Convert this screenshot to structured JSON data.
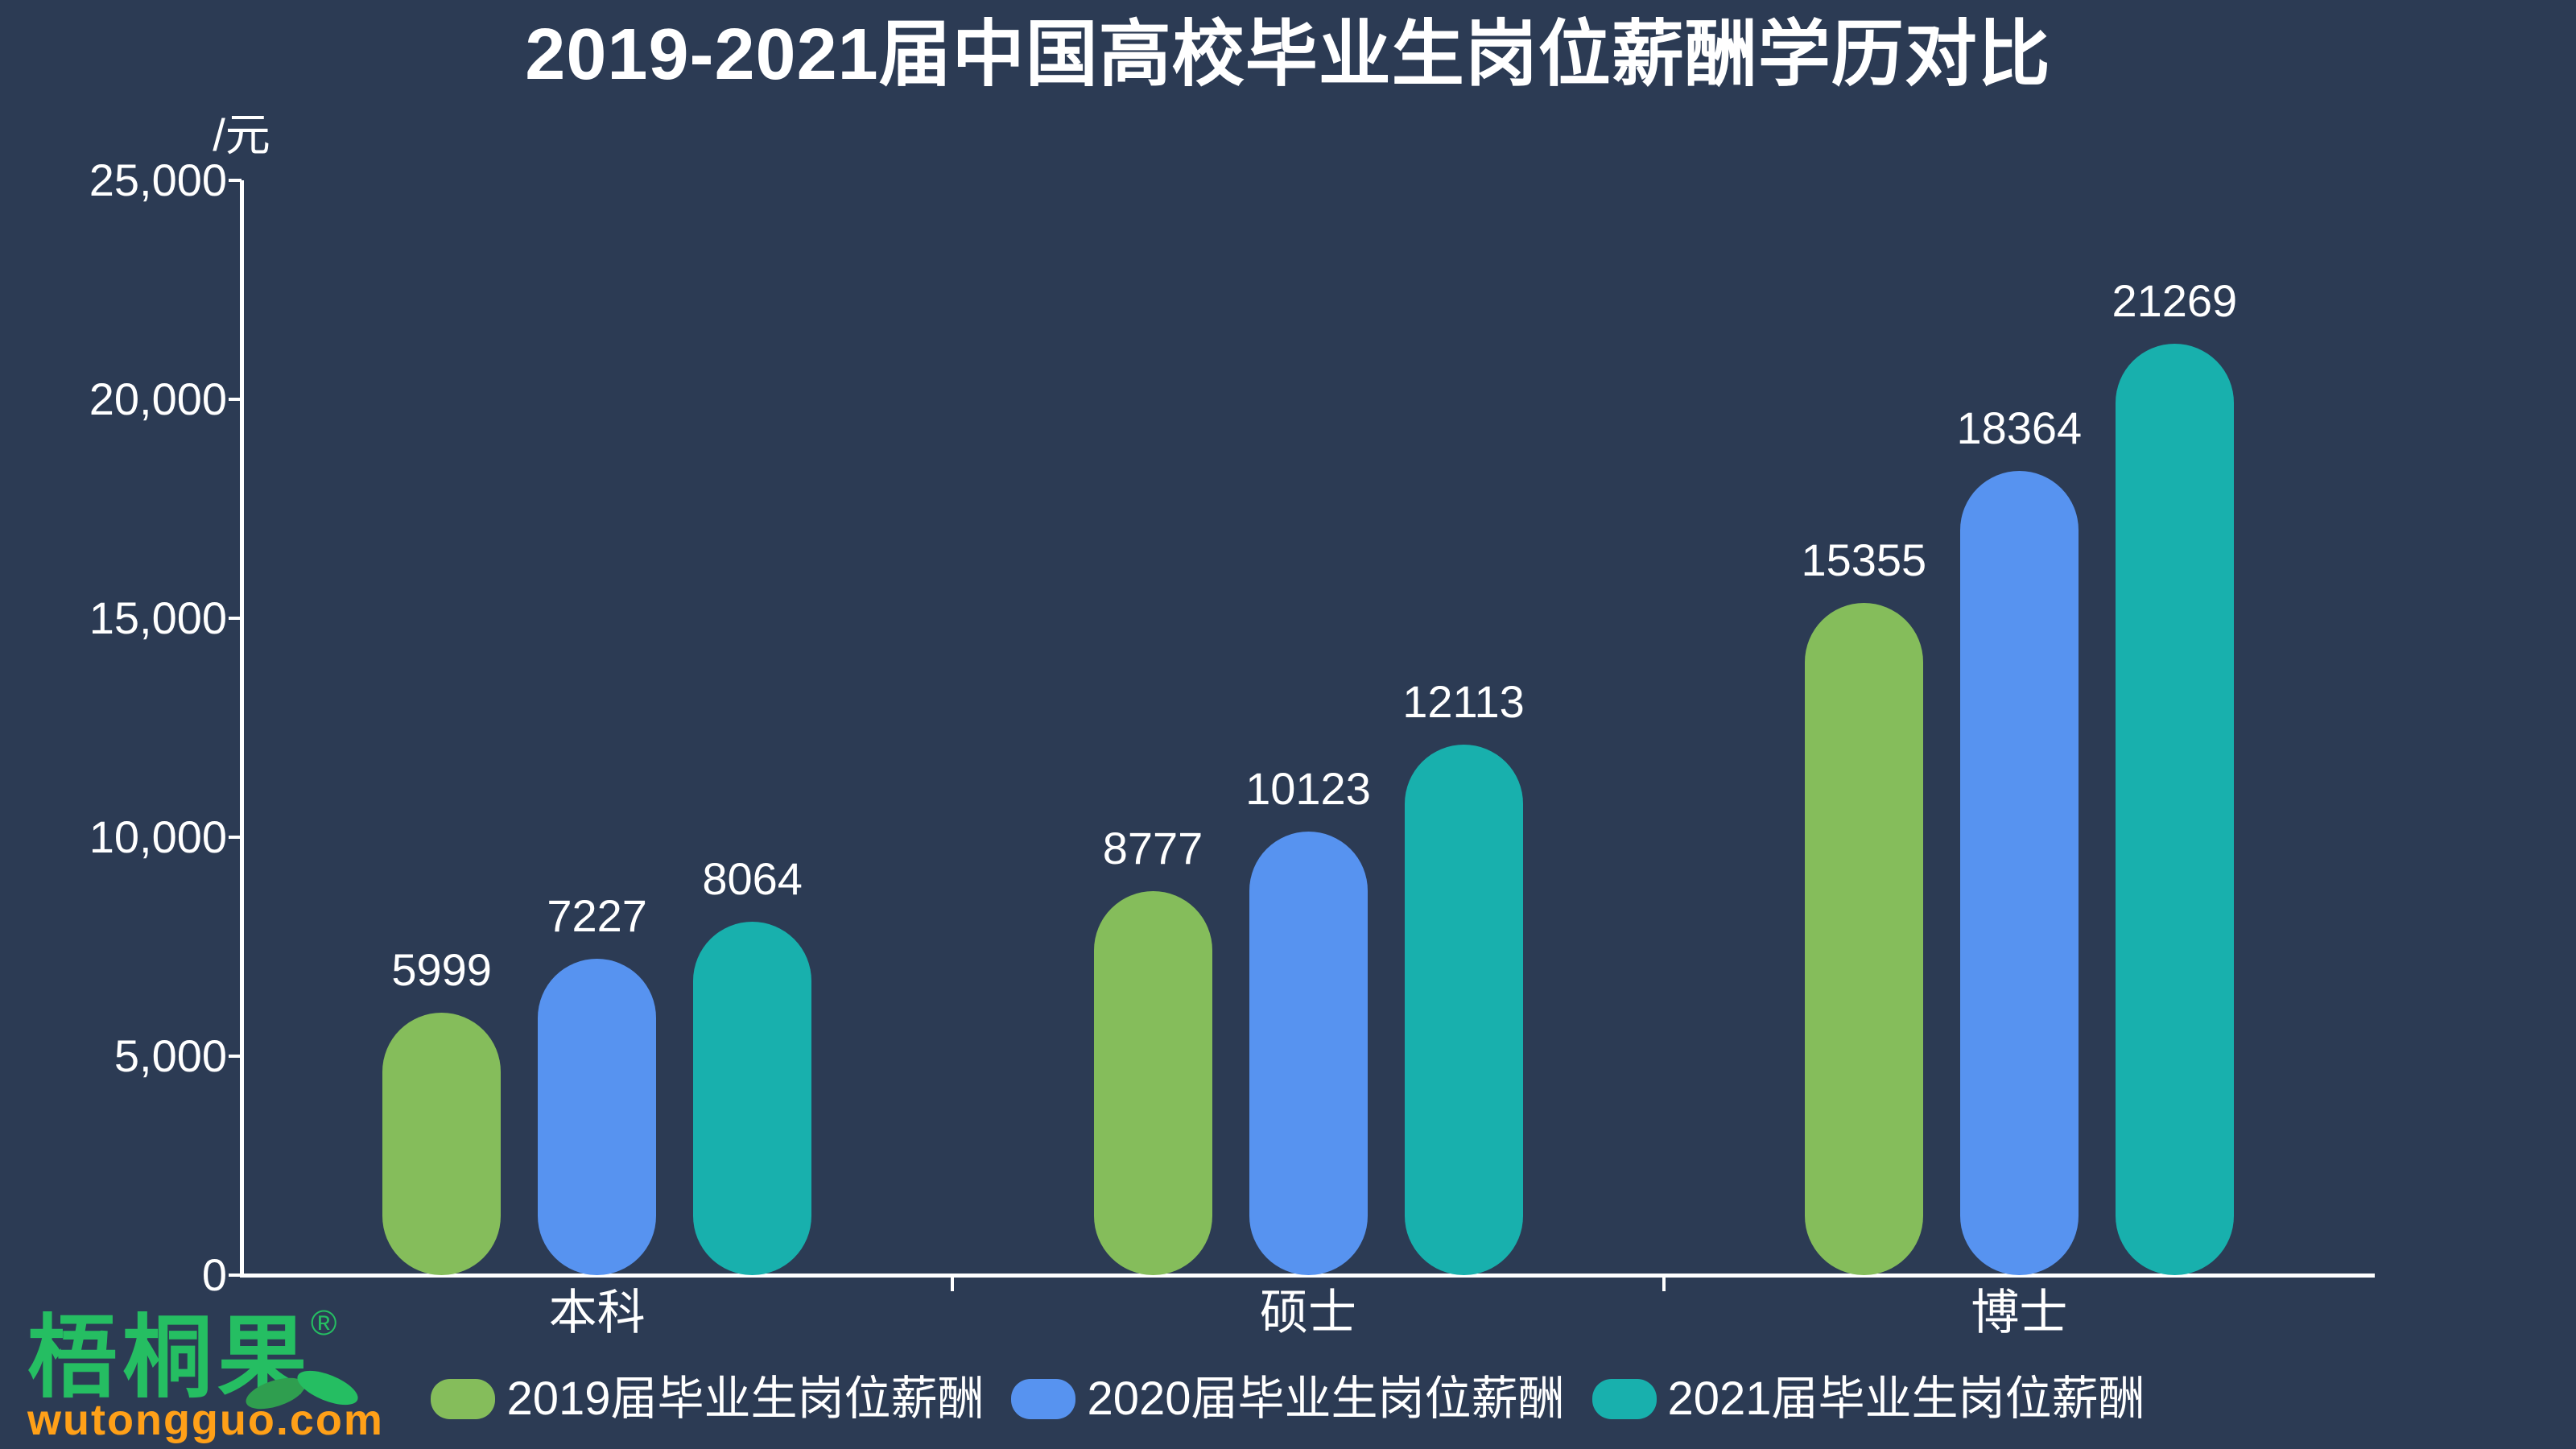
{
  "title": "2019-2021届中国高校毕业生岗位薪酬学历对比",
  "y_axis": {
    "unit_label": "/元",
    "tick_labels": [
      "25,000",
      "20,000",
      "15,000",
      "10,000",
      "5,000",
      "0"
    ]
  },
  "chart_data": {
    "type": "bar",
    "title": "2019-2021届中国高校毕业生岗位薪酬学历对比",
    "categories": [
      "本科",
      "硕士",
      "博士"
    ],
    "series": [
      {
        "name": "2019届毕业生岗位薪酬",
        "color": "#85BD5B",
        "values": [
          5999,
          8777,
          15355
        ]
      },
      {
        "name": "2020届毕业生岗位薪酬",
        "color": "#5793F0",
        "values": [
          7227,
          10123,
          18364
        ]
      },
      {
        "name": "2021届毕业生岗位薪酬",
        "color": "#18B0AD",
        "values": [
          8064,
          12113,
          21269
        ]
      }
    ],
    "ylabel": "/元",
    "ylim": [
      0,
      25000
    ],
    "grid": false,
    "legend_position": "bottom",
    "value_labels": true,
    "bar_shape": "capsule"
  },
  "logo": {
    "brand": "梧桐果",
    "registered": "®",
    "domain": "wutongguo.com"
  },
  "colors": {
    "background": "#2C3B54",
    "axis": "#FFFFFF",
    "text": "#FFFFFF",
    "brand_green": "#25BE62",
    "leaf_green": "#2F9E4F",
    "brand_orange": "#FFA018"
  }
}
